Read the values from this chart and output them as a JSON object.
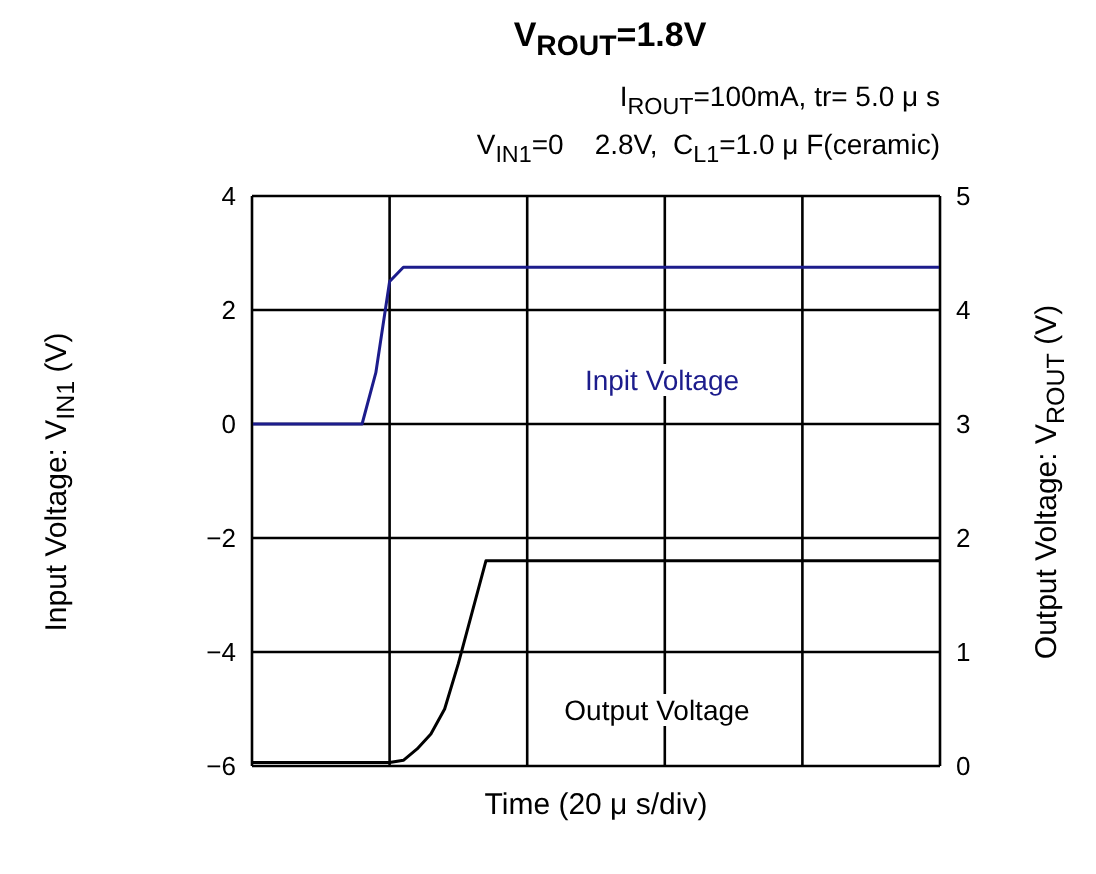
{
  "chart_data": {
    "type": "line",
    "title": "V$_{ROUT}$=1.8V",
    "subtitle": "I$_{ROUT}$=100mA, tr= 5.0 μ s\nV$_{IN1}$=0    2.8V,  C$_{L1}$=1.0 μ F(ceramic)",
    "xlabel": "Time (20 μ s/div)",
    "ylabel": "Input Voltage: V$_{IN1}$ (V)",
    "y2label": "Output Voltage: V$_{ROUT}$ (V)",
    "categories": [
      null,
      null,
      null,
      null,
      null,
      null,
      null,
      null,
      null,
      null,
      null,
      null,
      null,
      null,
      null,
      null,
      null,
      null,
      null,
      null,
      null,
      null,
      null,
      null,
      null,
      null,
      null,
      null,
      null,
      null,
      null,
      null,
      null,
      null,
      null,
      null,
      null,
      null,
      null,
      null,
      null,
      null,
      null,
      null,
      null,
      null,
      null,
      null,
      null,
      null,
      null
    ],
    "series": [
      {
        "name": "Inpit Voltage",
        "color": "#1c1c8c",
        "values": [
          0,
          0,
          0,
          0,
          0,
          0,
          0,
          0,
          0,
          0.9,
          2.5,
          2.75,
          2.75,
          2.75,
          2.75,
          2.75,
          2.75,
          2.75,
          2.75,
          2.75,
          2.75,
          2.75,
          2.75,
          2.75,
          2.75,
          2.75,
          2.75,
          2.75,
          2.75,
          2.75,
          2.75,
          2.75,
          2.75,
          2.75,
          2.75,
          2.75,
          2.75,
          2.75,
          2.75,
          2.75,
          2.75,
          2.75,
          2.75,
          2.75,
          2.75,
          2.75,
          2.75,
          2.75,
          2.75,
          2.75,
          2.75
        ]
      },
      {
        "name": "Output Voltage",
        "color": "#000000",
        "axis": "y2",
        "values": [
          0.03,
          0.03,
          0.03,
          0.03,
          0.03,
          0.03,
          0.03,
          0.03,
          0.03,
          0.03,
          0.03,
          0.05,
          0.15,
          0.28,
          0.5,
          0.9,
          1.35,
          1.8,
          1.8,
          1.8,
          1.8,
          1.8,
          1.8,
          1.8,
          1.8,
          1.8,
          1.8,
          1.8,
          1.8,
          1.8,
          1.8,
          1.8,
          1.8,
          1.8,
          1.8,
          1.8,
          1.8,
          1.8,
          1.8,
          1.8,
          1.8,
          1.8,
          1.8,
          1.8,
          1.8,
          1.8,
          1.8,
          1.8,
          1.8,
          1.8,
          1.8
        ]
      }
    ],
    "ylim": [
      -6,
      4
    ],
    "yticks": [
      -6,
      -4,
      -2,
      0,
      2,
      4
    ],
    "y2lim": [
      0,
      5
    ],
    "y2ticks": [
      0,
      1,
      2,
      3,
      4,
      5
    ],
    "tick_labels": "y",
    "grid": true,
    "marker": "none",
    "line_style": "solid"
  }
}
